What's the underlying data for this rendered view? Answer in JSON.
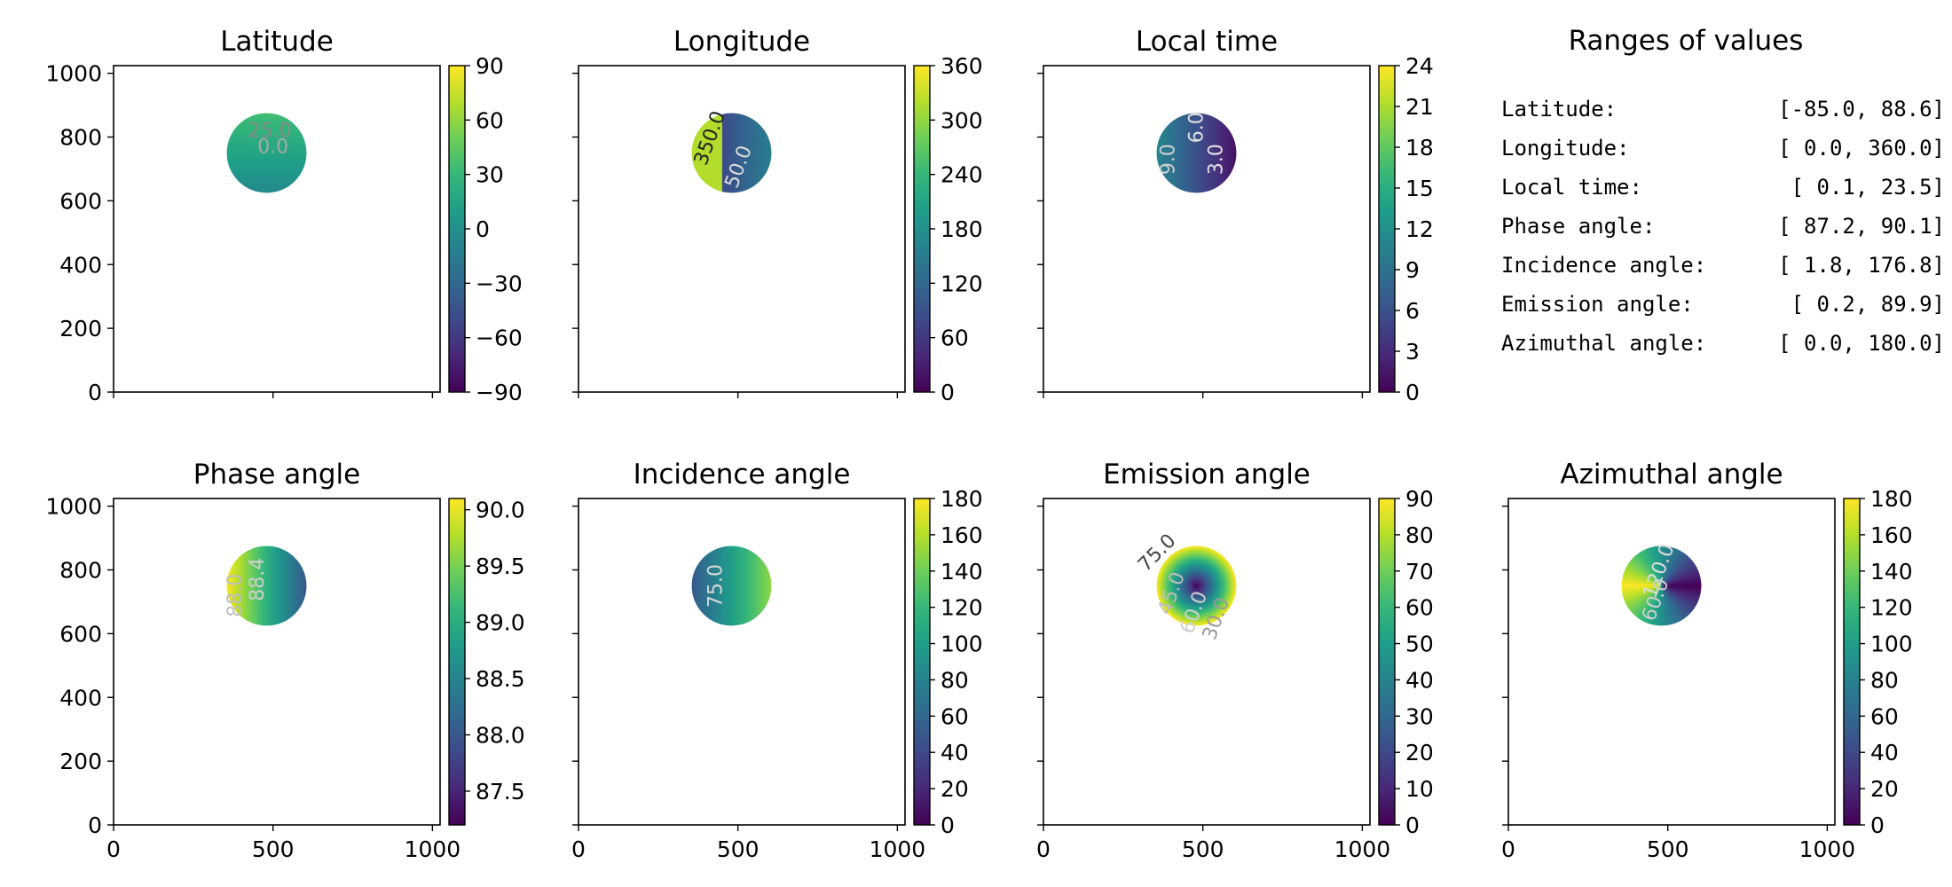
{
  "colormap": {
    "name": "viridis",
    "stops": [
      "#440154",
      "#482878",
      "#3e4989",
      "#31688e",
      "#26828e",
      "#1f9e89",
      "#35b779",
      "#6ece58",
      "#b5de2b",
      "#fde725"
    ]
  },
  "chart_data": [
    {
      "type": "heatmap",
      "title": "Latitude",
      "xlim": [
        0,
        1024
      ],
      "ylim": [
        0,
        1024
      ],
      "xticks": [
        0,
        500,
        1000
      ],
      "yticks": [
        0,
        200,
        400,
        600,
        800,
        1000
      ],
      "show_xtick_labels": false,
      "show_ytick_labels": true,
      "disk": {
        "center": [
          480,
          750
        ],
        "radius": 125
      },
      "colorbar": {
        "min": -90,
        "max": 90,
        "ticks": [
          90,
          60,
          30,
          0,
          -30,
          -60,
          -90
        ],
        "tick_labels": [
          "90",
          "60",
          "30",
          "0",
          "−30",
          "−60",
          "−90"
        ]
      },
      "disk_range": [
        -5,
        35
      ],
      "field": "y",
      "contour_labels": [
        {
          "text": "25.0",
          "x": 490,
          "y": 800,
          "color": "#8a8a8a"
        },
        {
          "text": "0.0",
          "x": 500,
          "y": 750,
          "color": "#a8a8a8"
        }
      ]
    },
    {
      "type": "heatmap",
      "title": "Longitude",
      "xlim": [
        0,
        1024
      ],
      "ylim": [
        0,
        1024
      ],
      "xticks": [
        0,
        500,
        1000
      ],
      "yticks": [
        0,
        200,
        400,
        600,
        800,
        1000
      ],
      "show_xtick_labels": false,
      "show_ytick_labels": false,
      "disk": {
        "center": [
          480,
          750
        ],
        "radius": 125
      },
      "colorbar": {
        "min": 0,
        "max": 360,
        "ticks": [
          360,
          300,
          240,
          180,
          120,
          60,
          0
        ],
        "tick_labels": [
          "360",
          "300",
          "240",
          "180",
          "120",
          "60",
          "0"
        ]
      },
      "disk_range": [
        10,
        345
      ],
      "field": "split",
      "contour_labels": [
        {
          "text": "350.0",
          "x": 430,
          "y": 790,
          "color": "#222222",
          "rotate": -70
        },
        {
          "text": "50.0",
          "x": 520,
          "y": 700,
          "color": "#dddddd",
          "rotate": -70
        }
      ]
    },
    {
      "type": "heatmap",
      "title": "Local time",
      "xlim": [
        0,
        1024
      ],
      "ylim": [
        0,
        1024
      ],
      "xticks": [
        0,
        500,
        1000
      ],
      "yticks": [
        0,
        200,
        400,
        600,
        800,
        1000
      ],
      "show_xtick_labels": false,
      "show_ytick_labels": false,
      "disk": {
        "center": [
          480,
          750
        ],
        "radius": 125
      },
      "colorbar": {
        "min": 0,
        "max": 24,
        "ticks": [
          24,
          21,
          18,
          15,
          12,
          9,
          6,
          3,
          0
        ],
        "tick_labels": [
          "24",
          "21",
          "18",
          "15",
          "12",
          "9",
          "6",
          "3",
          "0"
        ]
      },
      "disk_range": [
        1,
        11
      ],
      "field": "x_desc",
      "contour_labels": [
        {
          "text": "6.0",
          "x": 500,
          "y": 830,
          "color": "#e0e0e0",
          "rotate": -90
        },
        {
          "text": "9.0",
          "x": 410,
          "y": 730,
          "color": "#cfcfcf",
          "rotate": -90
        },
        {
          "text": "3.0",
          "x": 560,
          "y": 730,
          "color": "#e0e0e0",
          "rotate": -90
        }
      ]
    },
    {
      "type": "table",
      "title": "Ranges of values",
      "rows": [
        {
          "label": "Latitude:",
          "range": "[-85.0,  88.6]"
        },
        {
          "label": "Longitude:",
          "range": "[  0.0, 360.0]"
        },
        {
          "label": "Local time:",
          "range": "[  0.1,  23.5]"
        },
        {
          "label": "Phase angle:",
          "range": "[ 87.2,  90.1]"
        },
        {
          "label": "Incidence angle:",
          "range": "[  1.8, 176.8]"
        },
        {
          "label": "Emission angle:",
          "range": "[  0.2,  89.9]"
        },
        {
          "label": "Azimuthal angle:",
          "range": "[  0.0, 180.0]"
        }
      ]
    },
    {
      "type": "heatmap",
      "title": "Phase angle",
      "xlim": [
        0,
        1024
      ],
      "ylim": [
        0,
        1024
      ],
      "xticks": [
        0,
        500,
        1000
      ],
      "yticks": [
        0,
        200,
        400,
        600,
        800,
        1000
      ],
      "show_xtick_labels": true,
      "show_ytick_labels": true,
      "disk": {
        "center": [
          480,
          750
        ],
        "radius": 125
      },
      "colorbar": {
        "min": 87.2,
        "max": 90.1,
        "ticks": [
          90.0,
          89.5,
          89.0,
          88.5,
          88.0,
          87.5
        ],
        "tick_labels": [
          "90.0",
          "89.5",
          "89.0",
          "88.5",
          "88.0",
          "87.5"
        ]
      },
      "disk_range": [
        88.0,
        90.1
      ],
      "field": "x_desc",
      "contour_labels": [
        {
          "text": "88.4",
          "x": 470,
          "y": 770,
          "color": "#cfcfcf",
          "rotate": -90
        },
        {
          "text": "88.0",
          "x": 400,
          "y": 720,
          "color": "#bdbdbd",
          "rotate": -90
        }
      ]
    },
    {
      "type": "heatmap",
      "title": "Incidence angle",
      "xlim": [
        0,
        1024
      ],
      "ylim": [
        0,
        1024
      ],
      "xticks": [
        0,
        500,
        1000
      ],
      "yticks": [
        0,
        200,
        400,
        600,
        800,
        1000
      ],
      "show_xtick_labels": true,
      "show_ytick_labels": false,
      "disk": {
        "center": [
          480,
          750
        ],
        "radius": 125
      },
      "colorbar": {
        "min": 0,
        "max": 180,
        "ticks": [
          180,
          160,
          140,
          120,
          100,
          80,
          60,
          40,
          20,
          0
        ],
        "tick_labels": [
          "180",
          "160",
          "140",
          "120",
          "100",
          "80",
          "60",
          "40",
          "20",
          "0"
        ]
      },
      "disk_range": [
        50,
        150
      ],
      "field": "x_asc",
      "contour_labels": [
        {
          "text": "75.0",
          "x": 450,
          "y": 750,
          "color": "#d8d8d8",
          "rotate": -90
        }
      ]
    },
    {
      "type": "heatmap",
      "title": "Emission angle",
      "xlim": [
        0,
        1024
      ],
      "ylim": [
        0,
        1024
      ],
      "xticks": [
        0,
        500,
        1000
      ],
      "yticks": [
        0,
        200,
        400,
        600,
        800,
        1000
      ],
      "show_xtick_labels": true,
      "show_ytick_labels": false,
      "disk": {
        "center": [
          480,
          750
        ],
        "radius": 125
      },
      "colorbar": {
        "min": 0,
        "max": 90,
        "ticks": [
          90,
          80,
          70,
          60,
          50,
          40,
          30,
          20,
          10,
          0
        ],
        "tick_labels": [
          "90",
          "80",
          "70",
          "60",
          "50",
          "40",
          "30",
          "20",
          "10",
          "0"
        ]
      },
      "disk_range": [
        0,
        90
      ],
      "field": "radial",
      "contour_labels": [
        {
          "text": "75.0",
          "x": 370,
          "y": 840,
          "color": "#444444",
          "rotate": -45
        },
        {
          "text": "45.0",
          "x": 420,
          "y": 720,
          "color": "#bdbdbd",
          "rotate": -70
        },
        {
          "text": "60.0",
          "x": 490,
          "y": 660,
          "color": "#cfcfcf",
          "rotate": -70
        },
        {
          "text": "30.0",
          "x": 560,
          "y": 640,
          "color": "#9a9a9a",
          "rotate": -70
        }
      ]
    },
    {
      "type": "heatmap",
      "title": "Azimuthal angle",
      "xlim": [
        0,
        1024
      ],
      "ylim": [
        0,
        1024
      ],
      "xticks": [
        0,
        500,
        1000
      ],
      "yticks": [
        0,
        200,
        400,
        600,
        800,
        1000
      ],
      "show_xtick_labels": true,
      "show_ytick_labels": false,
      "disk": {
        "center": [
          480,
          750
        ],
        "radius": 125
      },
      "colorbar": {
        "min": 0,
        "max": 180,
        "ticks": [
          180,
          160,
          140,
          120,
          100,
          80,
          60,
          40,
          20,
          0
        ],
        "tick_labels": [
          "180",
          "160",
          "140",
          "120",
          "100",
          "80",
          "60",
          "40",
          "20",
          "0"
        ]
      },
      "disk_range": [
        0,
        180
      ],
      "field": "azimuth",
      "contour_labels": [
        {
          "text": "120.0",
          "x": 490,
          "y": 790,
          "color": "#dddddd",
          "rotate": -70
        },
        {
          "text": "60.0",
          "x": 480,
          "y": 700,
          "color": "#cfcfcf",
          "rotate": -70
        }
      ]
    }
  ]
}
